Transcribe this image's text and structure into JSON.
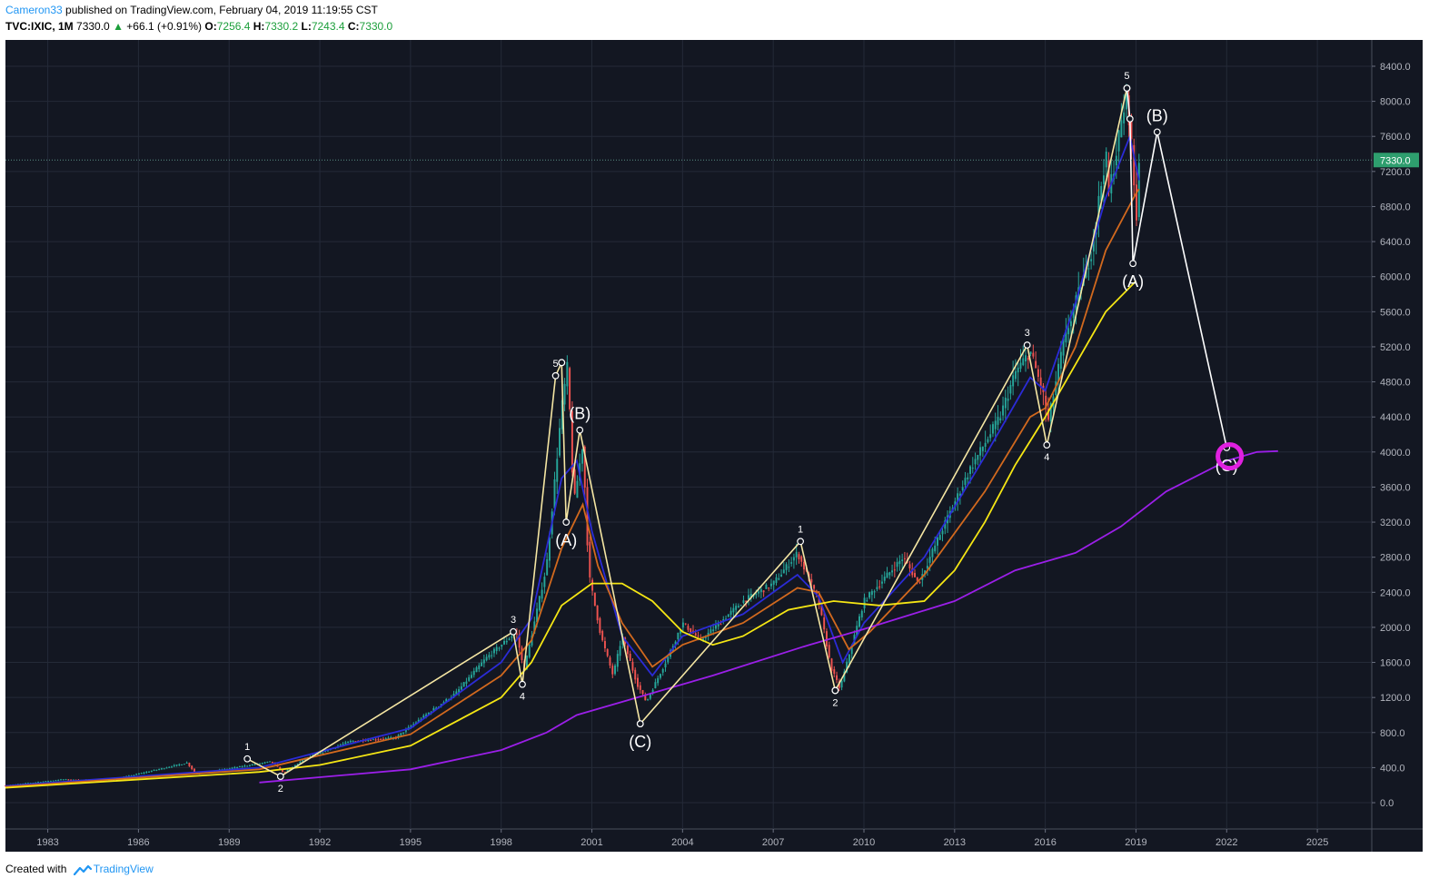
{
  "header": {
    "author": "Cameron33",
    "published_text": "published on TradingView.com, February 04, 2019 11:19:55 CST",
    "symbol": "TVC:IXIC, 1M",
    "last": "7330.0",
    "change": "+66.1 (+0.91%)",
    "o_label": "O:",
    "o_val": "7256.4",
    "h_label": "H:",
    "h_val": "7330.2",
    "l_label": "L:",
    "l_val": "7243.4",
    "c_label": "C:",
    "c_val": "7330.0"
  },
  "footer": {
    "created_with": "Created with",
    "brand": "TradingView"
  },
  "colors": {
    "background": "#131722",
    "grid": "#242a38",
    "axis_text": "#b2b5be",
    "up": "#26a69a",
    "down": "#ef5350",
    "ma_blue": "#2b2bd6",
    "ma_orange": "#d2691e",
    "ma_yellow": "#f5e614",
    "ma_purple": "#9b1fe8",
    "wave_cream": "#f5e6a3",
    "wave_white": "#ffffff",
    "target_circle": "#e020e0",
    "price_tag": "#2e9e6e"
  },
  "chart_data": {
    "type": "candlestick",
    "title": "TVC:IXIC, 1M",
    "timeframe": "1M",
    "x_ticks": [
      "1983",
      "1986",
      "1989",
      "1992",
      "1995",
      "1998",
      "2001",
      "2004",
      "2007",
      "2010",
      "2013",
      "2016",
      "2019",
      "2022",
      "2025"
    ],
    "y_ticks": [
      "0.0",
      "400.0",
      "800.0",
      "1200.0",
      "1600.0",
      "2000.0",
      "2400.0",
      "2800.0",
      "3200.0",
      "3600.0",
      "4000.0",
      "4400.0",
      "4800.0",
      "5200.0",
      "5600.0",
      "6000.0",
      "6400.0",
      "6800.0",
      "7200.0",
      "7600.0",
      "8000.0",
      "8400.0"
    ],
    "xlim": [
      1981.6,
      2026.8
    ],
    "ylim": [
      -300,
      8700
    ],
    "last_price": 7330.0,
    "last_price_label": "7330.0",
    "price_path": [
      [
        1981.6,
        195
      ],
      [
        1983.5,
        265
      ],
      [
        1985.0,
        250
      ],
      [
        1987.6,
        455
      ],
      [
        1987.9,
        330
      ],
      [
        1989.0,
        390
      ],
      [
        1990.4,
        470
      ],
      [
        1990.8,
        340
      ],
      [
        1991.5,
        500
      ],
      [
        1993.0,
        700
      ],
      [
        1994.5,
        740
      ],
      [
        1995.5,
        1000
      ],
      [
        1996.5,
        1250
      ],
      [
        1997.5,
        1650
      ],
      [
        1998.5,
        1950
      ],
      [
        1998.75,
        1500
      ],
      [
        1999.5,
        2700
      ],
      [
        2000.0,
        4500
      ],
      [
        2000.2,
        5000
      ],
      [
        2000.4,
        3400
      ],
      [
        2000.7,
        4100
      ],
      [
        2000.9,
        2600
      ],
      [
        2001.3,
        1900
      ],
      [
        2001.7,
        1450
      ],
      [
        2002.0,
        1900
      ],
      [
        2002.5,
        1350
      ],
      [
        2002.8,
        1150
      ],
      [
        2003.5,
        1650
      ],
      [
        2004.0,
        2050
      ],
      [
        2004.6,
        1850
      ],
      [
        2006.0,
        2300
      ],
      [
        2007.0,
        2500
      ],
      [
        2007.8,
        2850
      ],
      [
        2008.5,
        2300
      ],
      [
        2008.9,
        1550
      ],
      [
        2009.2,
        1300
      ],
      [
        2010.0,
        2300
      ],
      [
        2011.3,
        2800
      ],
      [
        2011.8,
        2500
      ],
      [
        2012.5,
        3050
      ],
      [
        2013.5,
        3800
      ],
      [
        2014.5,
        4400
      ],
      [
        2015.0,
        4900
      ],
      [
        2015.5,
        5150
      ],
      [
        2015.9,
        4700
      ],
      [
        2016.1,
        4350
      ],
      [
        2016.6,
        5250
      ],
      [
        2017.5,
        6250
      ],
      [
        2018.0,
        7400
      ],
      [
        2018.1,
        6950
      ],
      [
        2018.7,
        8100
      ],
      [
        2018.9,
        7300
      ],
      [
        2019.0,
        6550
      ],
      [
        2019.1,
        7330
      ]
    ],
    "moving_averages": [
      {
        "name": "MA blue",
        "color": "#2b2bd6",
        "points": [
          [
            1981.6,
            190
          ],
          [
            1990.0,
            400
          ],
          [
            1995.0,
            850
          ],
          [
            1998.0,
            1600
          ],
          [
            1999.0,
            2100
          ],
          [
            2000.0,
            3700
          ],
          [
            2000.5,
            3900
          ],
          [
            2001.0,
            3100
          ],
          [
            2002.0,
            1900
          ],
          [
            2003.0,
            1450
          ],
          [
            2004.0,
            1900
          ],
          [
            2006.0,
            2150
          ],
          [
            2007.8,
            2600
          ],
          [
            2008.5,
            2350
          ],
          [
            2009.3,
            1600
          ],
          [
            2010.0,
            2050
          ],
          [
            2012.0,
            2800
          ],
          [
            2014.0,
            3950
          ],
          [
            2015.5,
            4850
          ],
          [
            2016.0,
            4700
          ],
          [
            2017.0,
            5700
          ],
          [
            2018.0,
            6900
          ],
          [
            2018.8,
            7600
          ],
          [
            2019.1,
            7100
          ]
        ]
      },
      {
        "name": "MA orange",
        "color": "#d2691e",
        "points": [
          [
            1981.6,
            180
          ],
          [
            1990.0,
            380
          ],
          [
            1995.0,
            780
          ],
          [
            1998.0,
            1450
          ],
          [
            1999.0,
            1850
          ],
          [
            2000.0,
            2900
          ],
          [
            2000.7,
            3400
          ],
          [
            2001.2,
            2700
          ],
          [
            2002.0,
            2050
          ],
          [
            2003.0,
            1550
          ],
          [
            2004.0,
            1800
          ],
          [
            2006.0,
            2050
          ],
          [
            2007.8,
            2450
          ],
          [
            2008.5,
            2400
          ],
          [
            2009.5,
            1750
          ],
          [
            2010.2,
            1950
          ],
          [
            2012.0,
            2600
          ],
          [
            2014.0,
            3550
          ],
          [
            2015.5,
            4400
          ],
          [
            2016.0,
            4500
          ],
          [
            2017.0,
            5200
          ],
          [
            2018.0,
            6300
          ],
          [
            2019.0,
            6950
          ],
          [
            2019.1,
            7000
          ]
        ]
      },
      {
        "name": "MA yellow",
        "color": "#f5e614",
        "points": [
          [
            1981.6,
            170
          ],
          [
            1990.0,
            350
          ],
          [
            1992.0,
            430
          ],
          [
            1995.0,
            650
          ],
          [
            1998.0,
            1200
          ],
          [
            1999.0,
            1600
          ],
          [
            2000.0,
            2250
          ],
          [
            2001.0,
            2500
          ],
          [
            2002.0,
            2500
          ],
          [
            2003.0,
            2300
          ],
          [
            2004.0,
            1950
          ],
          [
            2005.0,
            1800
          ],
          [
            2006.0,
            1900
          ],
          [
            2007.5,
            2200
          ],
          [
            2009.0,
            2300
          ],
          [
            2010.5,
            2250
          ],
          [
            2012.0,
            2300
          ],
          [
            2013.0,
            2650
          ],
          [
            2014.0,
            3200
          ],
          [
            2015.0,
            3850
          ],
          [
            2016.0,
            4400
          ],
          [
            2017.0,
            5000
          ],
          [
            2018.0,
            5600
          ],
          [
            2019.0,
            5950
          ]
        ]
      },
      {
        "name": "MA purple",
        "color": "#9b1fe8",
        "points": [
          [
            1990.0,
            230
          ],
          [
            1995.0,
            380
          ],
          [
            1998.0,
            600
          ],
          [
            1999.5,
            800
          ],
          [
            2000.5,
            1000
          ],
          [
            2002.0,
            1150
          ],
          [
            2005.0,
            1450
          ],
          [
            2008.0,
            1780
          ],
          [
            2010.0,
            1980
          ],
          [
            2013.0,
            2300
          ],
          [
            2015.0,
            2650
          ],
          [
            2017.0,
            2850
          ],
          [
            2018.5,
            3150
          ],
          [
            2020.0,
            3550
          ],
          [
            2022.0,
            3900
          ],
          [
            2023.0,
            4000
          ],
          [
            2023.7,
            4010
          ]
        ]
      }
    ],
    "wave_lines": [
      {
        "name": "impulse 1990-2000",
        "color": "#f5e6a3",
        "points": [
          [
            1989.6,
            500
          ],
          [
            1990.7,
            300
          ],
          [
            1998.4,
            1950
          ],
          [
            1998.7,
            1350
          ],
          [
            1999.8,
            4870
          ],
          [
            2000.0,
            5020
          ]
        ]
      },
      {
        "name": "correction 2000-2002",
        "color": "#f5e6a3",
        "points": [
          [
            2000.0,
            5020
          ],
          [
            2000.15,
            3200
          ],
          [
            2000.6,
            4250
          ],
          [
            2002.6,
            900
          ]
        ]
      },
      {
        "name": "impulse 2002-2007",
        "color": "#f5e6a3",
        "points": [
          [
            2002.6,
            900
          ],
          [
            2007.9,
            2980
          ],
          [
            2009.05,
            1280
          ]
        ]
      },
      {
        "name": "impulse 2009-2018",
        "color": "#f5e6a3",
        "points": [
          [
            2009.05,
            1280
          ],
          [
            2015.4,
            5220
          ],
          [
            2016.05,
            4080
          ],
          [
            2018.7,
            8150
          ]
        ]
      },
      {
        "name": "projection",
        "color": "#ffffff",
        "points": [
          [
            2018.7,
            8150
          ],
          [
            2018.8,
            7800
          ],
          [
            2018.9,
            6150
          ],
          [
            2019.7,
            7650
          ],
          [
            2022.0,
            4050
          ]
        ]
      }
    ],
    "wave_labels": [
      {
        "text": "1",
        "x": 1989.6,
        "y": 500,
        "pos": "above",
        "size": "small"
      },
      {
        "text": "2",
        "x": 1990.7,
        "y": 300,
        "pos": "below",
        "size": "small"
      },
      {
        "text": "3",
        "x": 1998.4,
        "y": 1950,
        "pos": "above",
        "size": "small"
      },
      {
        "text": "4",
        "x": 1998.7,
        "y": 1350,
        "pos": "below",
        "size": "small"
      },
      {
        "text": "5",
        "x": 1999.8,
        "y": 4870,
        "pos": "above",
        "size": "small"
      },
      {
        "text": "(A)",
        "x": 2000.15,
        "y": 3200,
        "pos": "below",
        "size": "large"
      },
      {
        "text": "(B)",
        "x": 2000.6,
        "y": 4250,
        "pos": "above",
        "size": "large"
      },
      {
        "text": "(C)",
        "x": 2002.6,
        "y": 900,
        "pos": "below",
        "size": "large"
      },
      {
        "text": "1",
        "x": 2007.9,
        "y": 2980,
        "pos": "above",
        "size": "small"
      },
      {
        "text": "2",
        "x": 2009.05,
        "y": 1280,
        "pos": "below",
        "size": "small"
      },
      {
        "text": "3",
        "x": 2015.4,
        "y": 5220,
        "pos": "above",
        "size": "small"
      },
      {
        "text": "4",
        "x": 2016.05,
        "y": 4080,
        "pos": "below",
        "size": "small"
      },
      {
        "text": "5",
        "x": 2018.7,
        "y": 8150,
        "pos": "above",
        "size": "small"
      },
      {
        "text": "(A)",
        "x": 2018.9,
        "y": 6150,
        "pos": "below",
        "size": "large"
      },
      {
        "text": "(B)",
        "x": 2019.7,
        "y": 7650,
        "pos": "above",
        "size": "large"
      },
      {
        "text": "(C)",
        "x": 2022.0,
        "y": 4050,
        "pos": "below",
        "size": "large"
      }
    ],
    "target": {
      "x": 2022.1,
      "y": 3950,
      "label": "target circle"
    }
  }
}
